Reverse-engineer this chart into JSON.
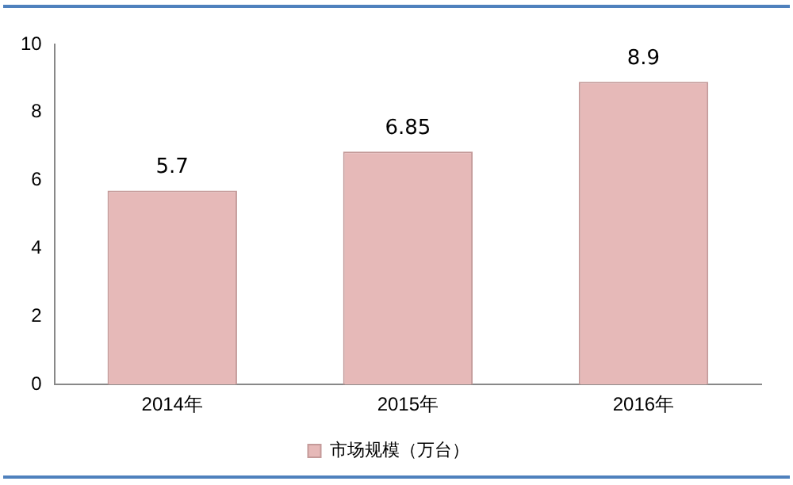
{
  "chart_data": {
    "type": "bar",
    "categories": [
      "2014年",
      "2015年",
      "2016年"
    ],
    "series": [
      {
        "name": "市场规模（万台）",
        "color": "#e6b9b8",
        "values": [
          5.7,
          6.85,
          8.9
        ]
      }
    ],
    "ylim": [
      0,
      10
    ],
    "yticks": [
      0,
      2,
      4,
      6,
      8,
      10
    ],
    "grid": false,
    "legend": "bottom",
    "data_labels": true
  }
}
